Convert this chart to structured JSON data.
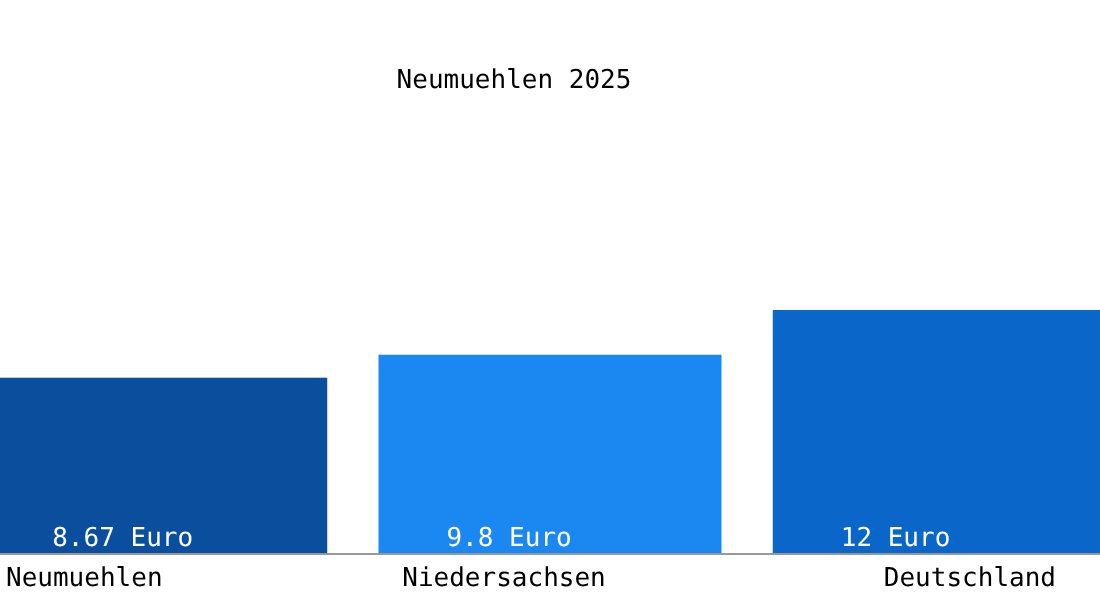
{
  "chart_data": {
    "type": "bar",
    "title": "Neumuehlen 2025",
    "categories": [
      "Neumuehlen",
      "Niedersachsen",
      "Deutschland"
    ],
    "values": [
      8.67,
      9.8,
      12
    ],
    "value_labels": [
      "8.67 Euro",
      "9.8 Euro",
      "12 Euro"
    ],
    "colors": [
      "#0a4f9e",
      "#1a88f0",
      "#0a66c8"
    ]
  }
}
